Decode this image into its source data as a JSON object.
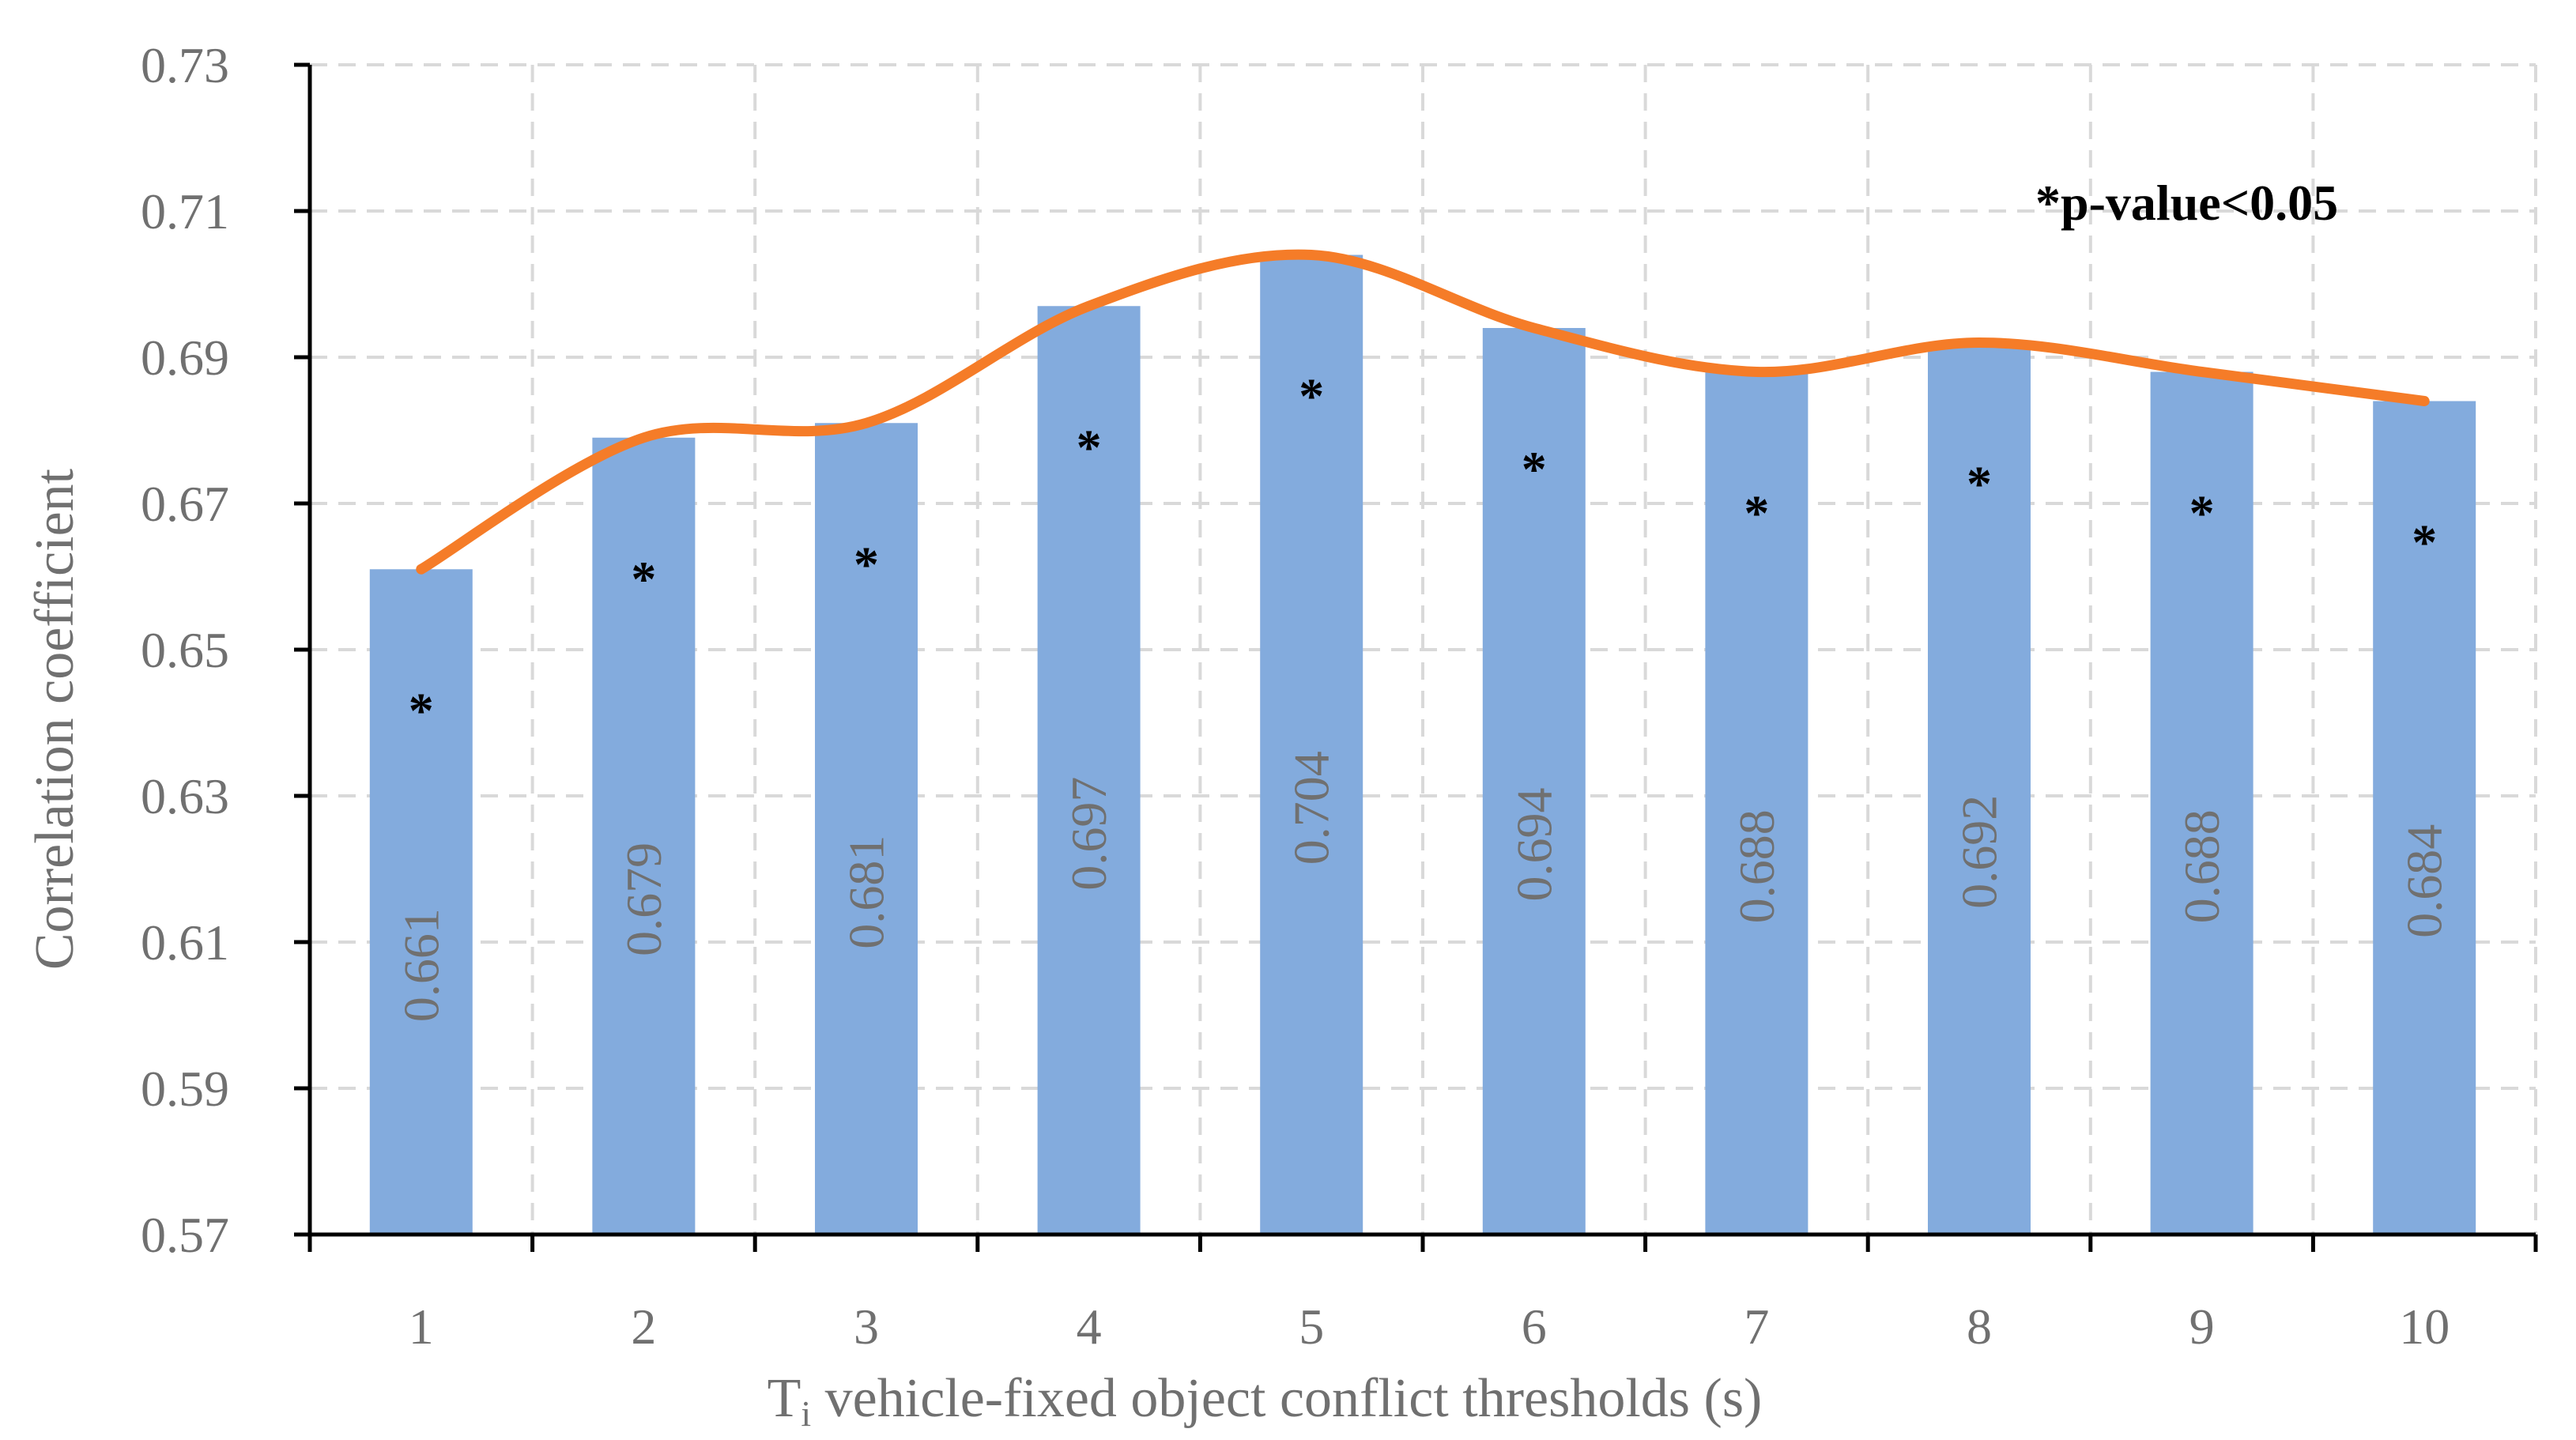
{
  "chart_data": {
    "type": "bar",
    "title": "",
    "xlabel_main": "T",
    "xlabel_sub": "i",
    "xlabel_rest": " vehicle-fixed object conflict thresholds (s)",
    "ylabel": "Correlation coefficient",
    "annotation": "*p-value<0.05",
    "significance_marker": "*",
    "categories": [
      "1",
      "2",
      "3",
      "4",
      "5",
      "6",
      "7",
      "8",
      "9",
      "10"
    ],
    "values": [
      0.661,
      0.679,
      0.681,
      0.697,
      0.704,
      0.694,
      0.688,
      0.692,
      0.688,
      0.684
    ],
    "value_labels": [
      "0.661",
      "0.679",
      "0.681",
      "0.697",
      "0.704",
      "0.694",
      "0.688",
      "0.692",
      "0.688",
      "0.684"
    ],
    "ylim": [
      0.57,
      0.73
    ],
    "yticks": [
      "0.57",
      "0.59",
      "0.61",
      "0.63",
      "0.65",
      "0.67",
      "0.69",
      "0.71",
      "0.73"
    ],
    "grid": true,
    "trend_line": "smoothed line through bar values",
    "colors": {
      "bar": "#83abdd",
      "line": "#f57c28",
      "grid": "#d9d9d9",
      "axis": "#000000",
      "text": "#707070"
    }
  }
}
